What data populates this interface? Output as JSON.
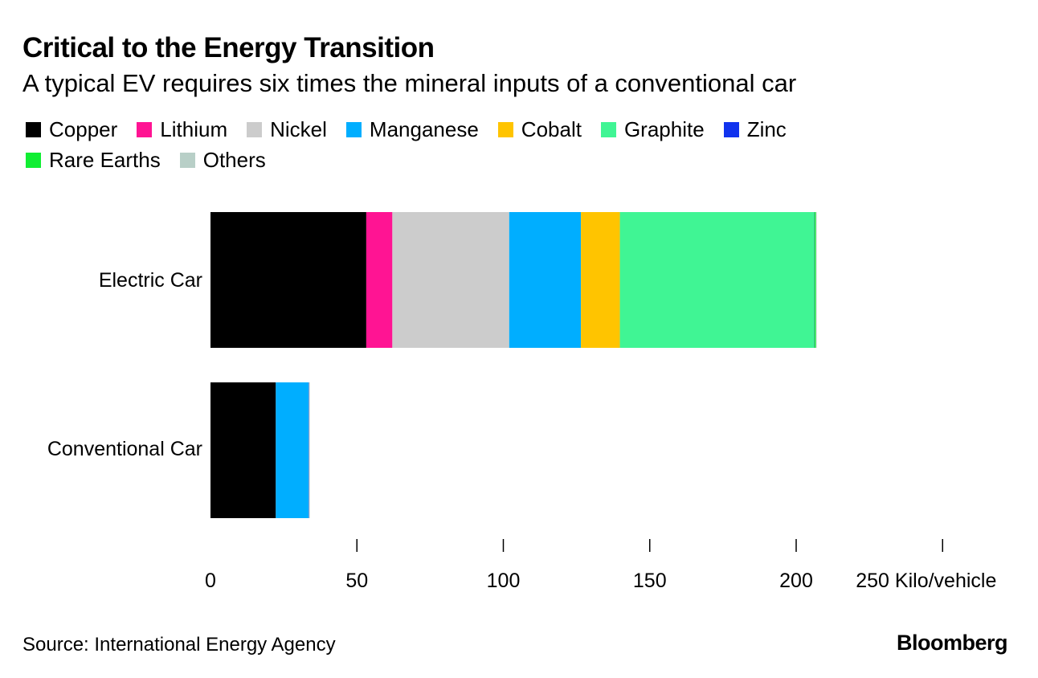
{
  "title": "Critical to the Energy Transition",
  "subtitle": "A typical EV requires six times the mineral inputs of a conventional car",
  "source": "Source: International Energy Agency",
  "brand": "Bloomberg",
  "colors": {
    "Copper": "#000000",
    "Lithium": "#ff1493",
    "Nickel": "#cccccc",
    "Manganese": "#00aeff",
    "Cobalt": "#ffc400",
    "Graphite": "#40f594",
    "Zinc": "#1133ee",
    "Rare Earths": "#11ee33",
    "Others": "#b8cfc7"
  },
  "chart_data": {
    "type": "bar",
    "orientation": "horizontal",
    "stacked": true,
    "categories": [
      "Electric Car",
      "Conventional Car"
    ],
    "series": [
      {
        "name": "Copper",
        "values": [
          53.2,
          22.3
        ]
      },
      {
        "name": "Lithium",
        "values": [
          8.9,
          0
        ]
      },
      {
        "name": "Nickel",
        "values": [
          39.9,
          0
        ]
      },
      {
        "name": "Manganese",
        "values": [
          24.5,
          11.2
        ]
      },
      {
        "name": "Cobalt",
        "values": [
          13.3,
          0
        ]
      },
      {
        "name": "Graphite",
        "values": [
          66.3,
          0
        ]
      },
      {
        "name": "Zinc",
        "values": [
          0.1,
          0.1
        ]
      },
      {
        "name": "Rare Earths",
        "values": [
          0.5,
          0
        ]
      },
      {
        "name": "Others",
        "values": [
          0.3,
          0.3
        ]
      }
    ],
    "xlim": [
      0,
      250
    ],
    "x_ticks": [
      0,
      50,
      100,
      150,
      200,
      250
    ],
    "x_tick_labels": [
      "0",
      "50",
      "100",
      "150",
      "200",
      "250 Kilo/vehicle"
    ],
    "xlabel": "Kilo/vehicle",
    "ylabel": "",
    "legend_position": "top"
  }
}
